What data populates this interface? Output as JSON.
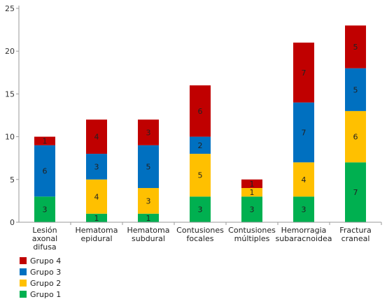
{
  "chart_data": {
    "type": "bar",
    "stacked": true,
    "categories": [
      "Lesión axonal difusa",
      "Hematoma epidural",
      "Hematoma subdural",
      "Contusiones focales",
      "Contusiones múltiples",
      "Hemorragia subaracnoidea",
      "Fractura craneal"
    ],
    "category_lines": [
      [
        "Lesión",
        "axonal",
        "difusa"
      ],
      [
        "Hematoma",
        "epidural"
      ],
      [
        "Hematoma",
        "subdural"
      ],
      [
        "Contusiones",
        "focales"
      ],
      [
        "Contusiones",
        "múltiples"
      ],
      [
        "Hemorragia",
        "subaracnoidea"
      ],
      [
        "Fractura",
        "craneal"
      ]
    ],
    "series": [
      {
        "name": "Grupo 1",
        "color": "#00b050",
        "values": [
          3,
          1,
          1,
          3,
          3,
          3,
          7
        ]
      },
      {
        "name": "Grupo 2",
        "color": "#ffc000",
        "values": [
          0,
          4,
          3,
          5,
          1,
          4,
          6
        ]
      },
      {
        "name": "Grupo 3",
        "color": "#0070c0",
        "values": [
          6,
          3,
          5,
          2,
          0,
          7,
          5
        ]
      },
      {
        "name": "Grupo 4",
        "color": "#c00000",
        "values": [
          1,
          4,
          3,
          6,
          1,
          7,
          5
        ]
      }
    ],
    "legend_order": [
      "Grupo 4",
      "Grupo 3",
      "Grupo 2",
      "Grupo 1"
    ],
    "ylim": [
      0,
      25
    ],
    "yticks": [
      0,
      5,
      10,
      15,
      20,
      25
    ],
    "grid": false,
    "legend_position": "bottom-left",
    "title": "",
    "xlabel": "",
    "ylabel": ""
  }
}
